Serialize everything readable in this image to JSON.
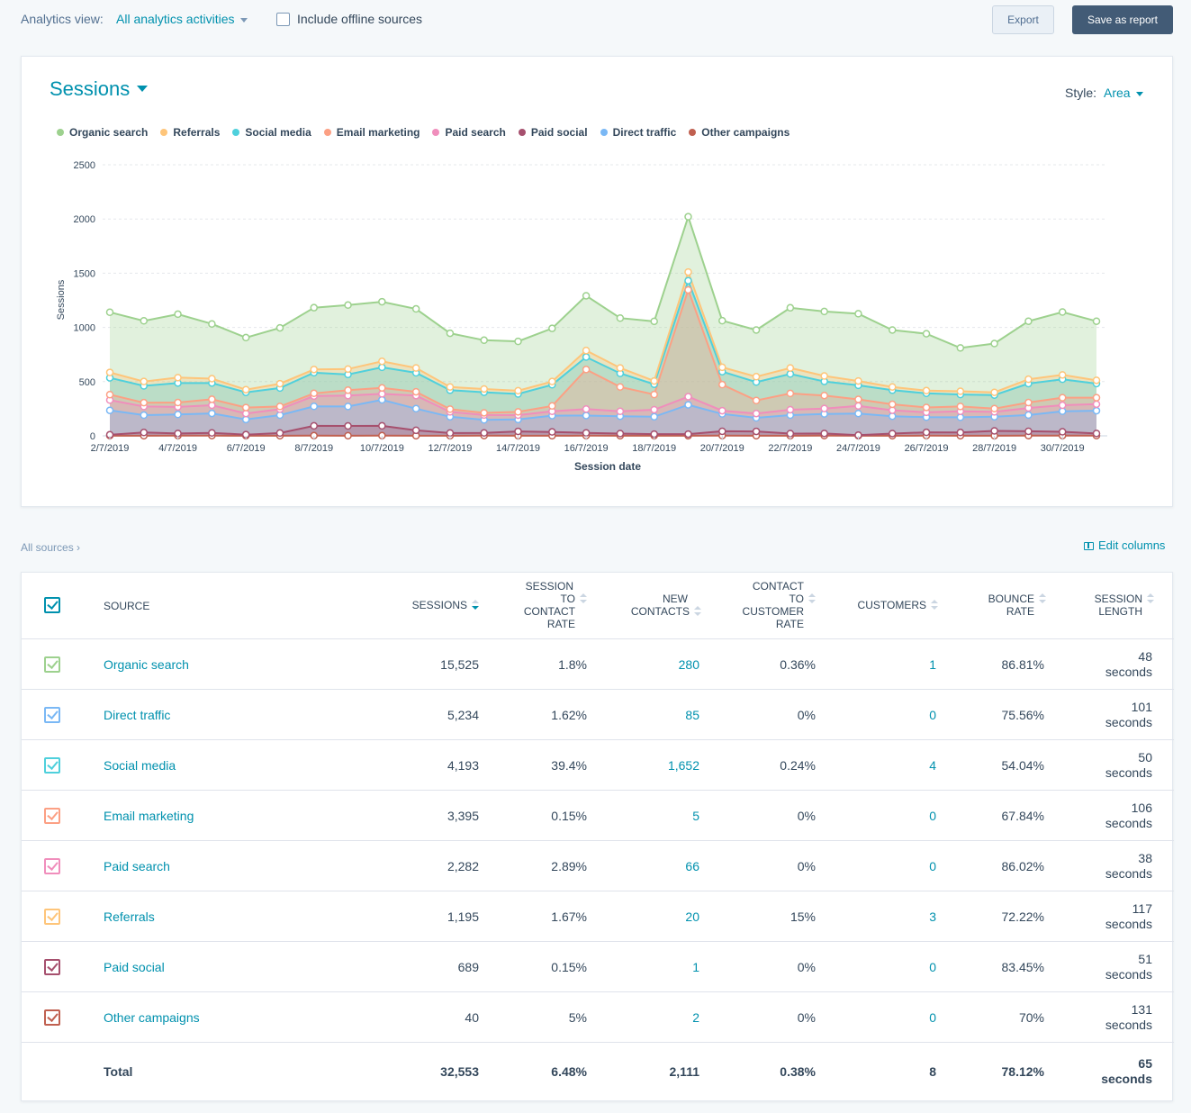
{
  "topbar": {
    "analytics_view_label": "Analytics view:",
    "analytics_view_value": "All analytics activities",
    "offline_label": "Include offline sources",
    "export_label": "Export",
    "save_label": "Save as report"
  },
  "chart_header": {
    "title": "Sessions",
    "style_label": "Style:",
    "style_value": "Area"
  },
  "legend": [
    {
      "name": "Organic search",
      "color": "#9dd18e"
    },
    {
      "name": "Referrals",
      "color": "#fec57a"
    },
    {
      "name": "Social media",
      "color": "#4fd0dc"
    },
    {
      "name": "Email marketing",
      "color": "#fca084"
    },
    {
      "name": "Paid search",
      "color": "#f08ebc"
    },
    {
      "name": "Paid social",
      "color": "#a6506e"
    },
    {
      "name": "Direct traffic",
      "color": "#7ab8f5"
    },
    {
      "name": "Other campaigns",
      "color": "#c06050"
    }
  ],
  "chart_data": {
    "type": "area",
    "xlabel": "Session date",
    "ylabel": "Sessions",
    "ylim": [
      0,
      2500
    ],
    "yticks": [
      0,
      500,
      1000,
      1500,
      2000,
      2500
    ],
    "x": [
      "2/7/2019",
      "3/7/2019",
      "4/7/2019",
      "5/7/2019",
      "6/7/2019",
      "7/7/2019",
      "8/7/2019",
      "9/7/2019",
      "10/7/2019",
      "11/7/2019",
      "12/7/2019",
      "13/7/2019",
      "14/7/2019",
      "15/7/2019",
      "16/7/2019",
      "17/7/2019",
      "18/7/2019",
      "19/7/2019",
      "20/7/2019",
      "21/7/2019",
      "22/7/2019",
      "23/7/2019",
      "24/7/2019",
      "25/7/2019",
      "26/7/2019",
      "27/7/2019",
      "28/7/2019",
      "29/7/2019",
      "30/7/2019",
      "31/7/2019"
    ],
    "xtick_labels": [
      "2/7/2019",
      "4/7/2019",
      "6/7/2019",
      "8/7/2019",
      "10/7/2019",
      "12/7/2019",
      "14/7/2019",
      "16/7/2019",
      "18/7/2019",
      "20/7/2019",
      "22/7/2019",
      "24/7/2019",
      "26/7/2019",
      "28/7/2019",
      "30/7/2019"
    ],
    "stacked": true,
    "series": [
      {
        "name": "Other campaigns",
        "color": "#c06050",
        "values": [
          2,
          1,
          2,
          2,
          1,
          1,
          2,
          1,
          2,
          1,
          1,
          2,
          1,
          1,
          2,
          1,
          1,
          1,
          2,
          1,
          1,
          2,
          1,
          1,
          2,
          1,
          1,
          2,
          2,
          2
        ]
      },
      {
        "name": "Paid social",
        "color": "#a6506e",
        "values": [
          8,
          30,
          20,
          25,
          10,
          25,
          90,
          90,
          90,
          50,
          25,
          25,
          40,
          35,
          25,
          20,
          15,
          15,
          40,
          40,
          20,
          20,
          5,
          20,
          30,
          30,
          45,
          40,
          35,
          20
        ]
      },
      {
        "name": "Direct traffic",
        "color": "#7ab8f5",
        "values": [
          225,
          160,
          175,
          180,
          140,
          165,
          180,
          180,
          240,
          200,
          150,
          120,
          110,
          150,
          160,
          160,
          160,
          270,
          160,
          125,
          170,
          180,
          200,
          160,
          140,
          140,
          130,
          150,
          190,
          210
        ]
      },
      {
        "name": "Paid search",
        "color": "#f08ebc",
        "values": [
          95,
          80,
          70,
          75,
          55,
          55,
          95,
          100,
          55,
          120,
          45,
          45,
          40,
          40,
          60,
          45,
          65,
          75,
          30,
          40,
          50,
          50,
          70,
          55,
          45,
          55,
          45,
          65,
          55,
          60
        ]
      },
      {
        "name": "Email marketing",
        "color": "#fca084",
        "values": [
          50,
          35,
          40,
          55,
          55,
          25,
          25,
          50,
          55,
          35,
          25,
          20,
          30,
          50,
          365,
          225,
          140,
          985,
          240,
          120,
          150,
          120,
          60,
          55,
          45,
          45,
          30,
          50,
          70,
          60
        ]
      },
      {
        "name": "Social media",
        "color": "#4fd0dc",
        "values": [
          155,
          155,
          180,
          150,
          140,
          170,
          190,
          145,
          190,
          175,
          175,
          190,
          165,
          195,
          115,
          125,
          95,
          85,
          120,
          170,
          180,
          130,
          130,
          130,
          130,
          110,
          125,
          175,
          170,
          130
        ]
      },
      {
        "name": "Referrals",
        "color": "#fec57a",
        "values": [
          50,
          40,
          50,
          40,
          25,
          40,
          30,
          50,
          55,
          45,
          30,
          30,
          30,
          30,
          60,
          50,
          30,
          80,
          40,
          50,
          55,
          50,
          40,
          30,
          25,
          30,
          25,
          40,
          40,
          30
        ]
      },
      {
        "name": "Organic search",
        "color": "#9dd18e",
        "values": [
          555,
          560,
          585,
          505,
          480,
          515,
          570,
          590,
          550,
          545,
          495,
          450,
          455,
          490,
          505,
          460,
          550,
          510,
          430,
          430,
          555,
          595,
          620,
          525,
          525,
          400,
          450,
          535,
          580,
          545
        ]
      }
    ]
  },
  "breadcrumb": {
    "all_sources": "All sources",
    "edit_columns": "Edit columns"
  },
  "table": {
    "headers": {
      "source": "Source",
      "sessions": "Sessions",
      "s2c_1": "Session",
      "s2c_2": "to",
      "s2c_3": "contact",
      "s2c_4": "rate",
      "new_1": "New",
      "new_2": "contacts",
      "c2c_1": "Contact",
      "c2c_2": "to",
      "c2c_3": "customer",
      "c2c_4": "rate",
      "customers": "Customers",
      "bounce_1": "Bounce",
      "bounce_2": "rate",
      "len_1": "Session",
      "len_2": "length"
    },
    "rows": [
      {
        "source": "Organic search",
        "color": "#9dd18e",
        "sessions": "15,525",
        "s2c": "1.8%",
        "new_contacts": "280",
        "c2c": "0.36%",
        "customers": "1",
        "bounce": "86.81%",
        "len_num": "48",
        "len_unit": "seconds"
      },
      {
        "source": "Direct traffic",
        "color": "#7ab8f5",
        "sessions": "5,234",
        "s2c": "1.62%",
        "new_contacts": "85",
        "c2c": "0%",
        "customers": "0",
        "bounce": "75.56%",
        "len_num": "101",
        "len_unit": "seconds"
      },
      {
        "source": "Social media",
        "color": "#4fd0dc",
        "sessions": "4,193",
        "s2c": "39.4%",
        "new_contacts": "1,652",
        "c2c": "0.24%",
        "customers": "4",
        "bounce": "54.04%",
        "len_num": "50",
        "len_unit": "seconds"
      },
      {
        "source": "Email marketing",
        "color": "#fca084",
        "sessions": "3,395",
        "s2c": "0.15%",
        "new_contacts": "5",
        "c2c": "0%",
        "customers": "0",
        "bounce": "67.84%",
        "len_num": "106",
        "len_unit": "seconds"
      },
      {
        "source": "Paid search",
        "color": "#f08ebc",
        "sessions": "2,282",
        "s2c": "2.89%",
        "new_contacts": "66",
        "c2c": "0%",
        "customers": "0",
        "bounce": "86.02%",
        "len_num": "38",
        "len_unit": "seconds"
      },
      {
        "source": "Referrals",
        "color": "#fec57a",
        "sessions": "1,195",
        "s2c": "1.67%",
        "new_contacts": "20",
        "c2c": "15%",
        "customers": "3",
        "bounce": "72.22%",
        "len_num": "117",
        "len_unit": "seconds"
      },
      {
        "source": "Paid social",
        "color": "#a6506e",
        "sessions": "689",
        "s2c": "0.15%",
        "new_contacts": "1",
        "c2c": "0%",
        "customers": "0",
        "bounce": "83.45%",
        "len_num": "51",
        "len_unit": "seconds"
      },
      {
        "source": "Other campaigns",
        "color": "#c06050",
        "sessions": "40",
        "s2c": "5%",
        "new_contacts": "2",
        "c2c": "0%",
        "customers": "0",
        "bounce": "70%",
        "len_num": "131",
        "len_unit": "seconds"
      }
    ],
    "total": {
      "label": "Total",
      "sessions": "32,553",
      "s2c": "6.48%",
      "new_contacts": "2,111",
      "c2c": "0.38%",
      "customers": "8",
      "bounce": "78.12%",
      "len_num": "65",
      "len_unit": "seconds"
    }
  }
}
